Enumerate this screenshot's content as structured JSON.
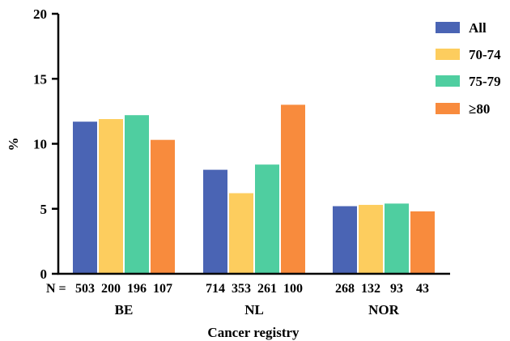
{
  "chart_data": {
    "type": "bar",
    "title": "",
    "xlabel": "Cancer registry",
    "ylabel": "%",
    "ylim": [
      0,
      20
    ],
    "yticks": [
      0,
      5,
      10,
      15,
      20
    ],
    "categories": [
      "BE",
      "NL",
      "NOR"
    ],
    "series": [
      {
        "name": "All",
        "color": "#4a64b4",
        "values": [
          11.7,
          8.0,
          5.2
        ]
      },
      {
        "name": "70-74",
        "color": "#fdcd5e",
        "values": [
          11.9,
          6.2,
          5.3
        ]
      },
      {
        "name": "75-79",
        "color": "#4fcea0",
        "values": [
          12.2,
          8.4,
          5.4
        ]
      },
      {
        "name": "≥80",
        "color": "#f88b3d",
        "values": [
          10.3,
          13.0,
          4.8
        ]
      }
    ],
    "n_prefix": "N = ",
    "n_labels": [
      [
        "503",
        "200",
        "196",
        "107"
      ],
      [
        "714",
        "353",
        "261",
        "100"
      ],
      [
        "268",
        "132",
        "93",
        "43"
      ]
    ],
    "legend_position": "top-right",
    "grid": false
  }
}
